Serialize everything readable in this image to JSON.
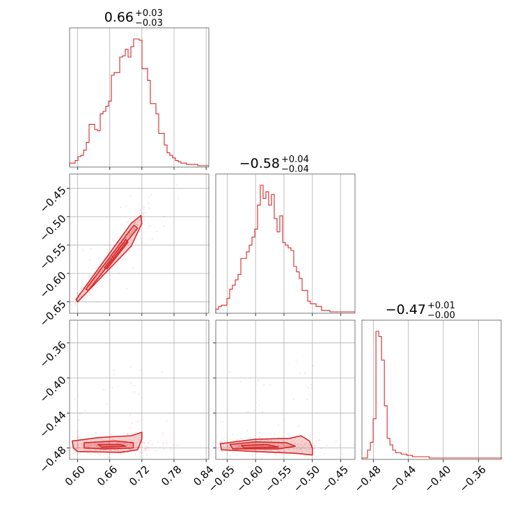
{
  "chart_data": {
    "type": "corner",
    "color": "#d62728",
    "grid": true,
    "parameters": [
      {
        "title": {
          "median": "0.66",
          "plus": "+0.03",
          "minus": "−0.03"
        },
        "range": [
          0.585,
          0.845
        ],
        "ticks": [
          0.6,
          0.66,
          0.72,
          0.78,
          0.84
        ],
        "tick_labels": [
          "0.60",
          "0.66",
          "0.72",
          "0.78",
          "0.84"
        ]
      },
      {
        "title": {
          "median": "−0.58",
          "plus": "+0.04",
          "minus": "−0.04"
        },
        "range": [
          -0.67,
          -0.425
        ],
        "ticks": [
          -0.65,
          -0.6,
          -0.55,
          -0.5,
          -0.45
        ],
        "tick_labels": [
          "−0.65",
          "−0.60",
          "−0.55",
          "−0.50",
          "−0.45"
        ]
      },
      {
        "title": {
          "median": "−0.47",
          "plus": "+0.01",
          "minus": "−0.00"
        },
        "range": [
          -0.493,
          -0.334
        ],
        "ticks": [
          -0.48,
          -0.44,
          -0.4,
          -0.36
        ],
        "tick_labels": [
          "−0.48",
          "−0.44",
          "−0.40",
          "−0.36"
        ]
      }
    ],
    "histograms": [
      {
        "edges_start": 0.585,
        "bin_width": 0.0052,
        "counts": [
          2,
          2,
          4,
          7,
          8,
          12,
          18,
          32,
          32,
          28,
          27,
          40,
          42,
          46,
          50,
          70,
          72,
          72,
          84,
          85,
          90,
          84,
          92,
          98,
          98,
          97,
          75,
          75,
          66,
          48,
          48,
          40,
          25,
          25,
          16,
          10,
          8,
          6,
          4,
          3,
          2,
          2,
          1,
          1,
          1,
          1,
          0,
          0,
          0,
          0
        ]
      },
      {
        "edges_start": -0.67,
        "bin_width": 0.0049,
        "counts": [
          2,
          4,
          5,
          5,
          10,
          17,
          20,
          24,
          28,
          40,
          40,
          45,
          50,
          56,
          62,
          80,
          95,
          85,
          90,
          80,
          88,
          70,
          60,
          72,
          52,
          50,
          48,
          46,
          34,
          30,
          25,
          16,
          16,
          8,
          6,
          6,
          4,
          4,
          1,
          1,
          1,
          0,
          0,
          0,
          0,
          0,
          0,
          0,
          0,
          0
        ]
      },
      {
        "edges_start": -0.493,
        "bin_width": 0.0032,
        "counts": [
          0,
          0,
          6,
          12,
          30,
          97,
          93,
          75,
          40,
          15,
          10,
          6,
          4,
          4,
          3,
          3,
          2,
          2,
          1,
          1,
          1,
          1,
          1,
          1,
          0,
          0,
          0,
          0,
          0,
          0,
          0,
          0,
          0,
          0,
          0,
          0,
          0,
          0,
          0,
          0,
          0,
          0,
          0,
          0,
          0,
          0,
          0,
          0,
          0,
          0
        ]
      }
    ],
    "pairs": [
      {
        "row": 1,
        "col": 0,
        "outer": [
          [
            0.597,
            -0.646
          ],
          [
            0.7,
            -0.512
          ],
          [
            0.718,
            -0.498
          ],
          [
            0.72,
            -0.512
          ],
          [
            0.7,
            -0.552
          ],
          [
            0.6,
            -0.65
          ]
        ],
        "inner": [
          [
            0.615,
            -0.628
          ],
          [
            0.705,
            -0.515
          ],
          [
            0.712,
            -0.52
          ],
          [
            0.62,
            -0.63
          ]
        ],
        "core": [
          [
            0.65,
            -0.59
          ],
          [
            0.69,
            -0.54
          ],
          [
            0.694,
            -0.545
          ],
          [
            0.655,
            -0.592
          ]
        ]
      },
      {
        "row": 2,
        "col": 0,
        "outer": [
          [
            0.59,
            -0.472
          ],
          [
            0.64,
            -0.468
          ],
          [
            0.7,
            -0.466
          ],
          [
            0.72,
            -0.462
          ],
          [
            0.72,
            -0.47
          ],
          [
            0.712,
            -0.482
          ],
          [
            0.68,
            -0.485
          ],
          [
            0.6,
            -0.484
          ],
          [
            0.592,
            -0.48
          ]
        ],
        "inner": [
          [
            0.612,
            -0.474
          ],
          [
            0.67,
            -0.472
          ],
          [
            0.704,
            -0.474
          ],
          [
            0.704,
            -0.48
          ],
          [
            0.65,
            -0.481
          ],
          [
            0.612,
            -0.48
          ]
        ],
        "core": [
          [
            0.638,
            -0.476
          ],
          [
            0.68,
            -0.476
          ],
          [
            0.69,
            -0.478
          ],
          [
            0.645,
            -0.479
          ]
        ]
      },
      {
        "row": 2,
        "col": 1,
        "outer": [
          [
            -0.662,
            -0.475
          ],
          [
            -0.6,
            -0.47
          ],
          [
            -0.54,
            -0.469
          ],
          [
            -0.52,
            -0.466
          ],
          [
            -0.505,
            -0.472
          ],
          [
            -0.5,
            -0.48
          ],
          [
            -0.5,
            -0.488
          ],
          [
            -0.53,
            -0.486
          ],
          [
            -0.6,
            -0.484
          ],
          [
            -0.66,
            -0.482
          ]
        ],
        "inner": [
          [
            -0.645,
            -0.476
          ],
          [
            -0.6,
            -0.473
          ],
          [
            -0.545,
            -0.474
          ],
          [
            -0.53,
            -0.478
          ],
          [
            -0.56,
            -0.481
          ],
          [
            -0.64,
            -0.481
          ]
        ],
        "core": [
          [
            -0.625,
            -0.477
          ],
          [
            -0.58,
            -0.476
          ],
          [
            -0.56,
            -0.479
          ],
          [
            -0.62,
            -0.48
          ]
        ]
      }
    ]
  }
}
